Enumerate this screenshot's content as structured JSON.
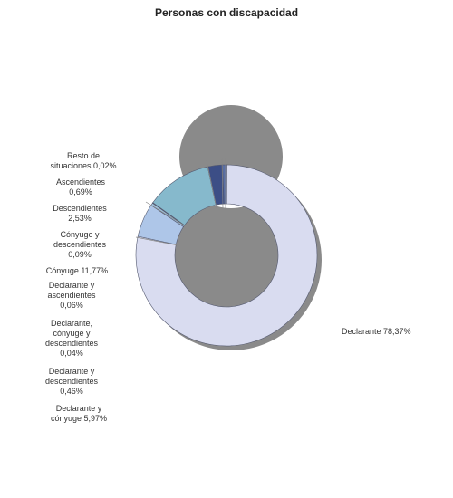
{
  "chart_data": {
    "type": "pie",
    "title": "Personas con discapacidad",
    "slices": [
      {
        "name": "Declarante",
        "value": 78.37,
        "label_lines": [
          "Declarante 78,37%"
        ],
        "color": "#d9dcf0"
      },
      {
        "name": "Declarante y cónyuge",
        "value": 5.97,
        "label_lines": [
          "Declarante y",
          "cónyuge 5,97%"
        ],
        "color": "#aec6e8"
      },
      {
        "name": "Declarante y descendientes",
        "value": 0.46,
        "label_lines": [
          "Declarante y",
          "descendientes",
          "0,46%"
        ],
        "color": "#9fbfd8"
      },
      {
        "name": "Declarante, cónyuge y descendientes",
        "value": 0.04,
        "label_lines": [
          "Declarante,",
          "cónyuge y",
          "descendientes",
          "0,04%"
        ],
        "color": "#c8d0e8"
      },
      {
        "name": "Declarante y ascendientes",
        "value": 0.06,
        "label_lines": [
          "Declarante y",
          "ascendientes",
          "0,06%"
        ],
        "color": "#b9c8e0"
      },
      {
        "name": "Cónyuge",
        "value": 11.77,
        "label_lines": [
          "Cónyuge 11,77%"
        ],
        "color": "#86b9cc"
      },
      {
        "name": "Cónyuge y descendientes",
        "value": 0.09,
        "label_lines": [
          "Cónyuge y",
          "descendientes",
          "0,09%"
        ],
        "color": "#a8c4d8"
      },
      {
        "name": "Descendientes",
        "value": 2.53,
        "label_lines": [
          "Descendientes",
          "2,53%"
        ],
        "color": "#3c4e86"
      },
      {
        "name": "Ascendientes",
        "value": 0.69,
        "label_lines": [
          "Ascendientes",
          "0,69%"
        ],
        "color": "#5a6fa5"
      },
      {
        "name": "Resto de situaciones",
        "value": 0.02,
        "label_lines": [
          "Resto de",
          "situaciones 0,02%"
        ],
        "color": "#e6e8f4"
      }
    ]
  }
}
